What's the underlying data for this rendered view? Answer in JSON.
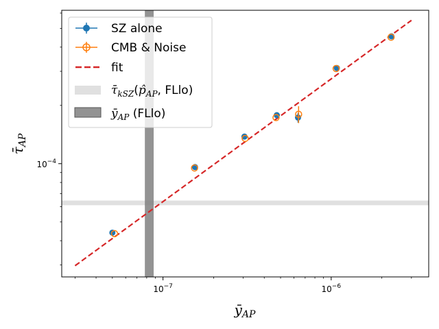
{
  "chart_data": {
    "type": "scatter",
    "title": "",
    "xlabel": "ȳ",
    "xlabel_sub": "AP",
    "ylabel": "τ̄",
    "ylabel_sub": "AP",
    "xscale": "log",
    "yscale": "log",
    "xlim": [
      2.5e-08,
      3.8e-06
    ],
    "ylim": [
      2.6e-05,
      0.00062
    ],
    "x_ticks": [
      {
        "value": 1e-07,
        "base": "10",
        "exp": "−7"
      },
      {
        "value": 1e-06,
        "base": "10",
        "exp": "−6"
      }
    ],
    "y_ticks": [
      {
        "value": 0.0001,
        "base": "10",
        "exp": "−4"
      }
    ],
    "grid": false,
    "legend_position": "top-left",
    "series": [
      {
        "name": "SZ alone",
        "color": "#1f77b4",
        "marker": "filled-circle",
        "x": [
          5e-08,
          1.55e-07,
          3.05e-07,
          4.75e-07,
          6.35e-07,
          1.08e-06,
          2.28e-06
        ],
        "y": [
          4.4e-05,
          9.6e-05,
          0.000138,
          0.000178,
          0.000173,
          0.000312,
          0.000455
        ],
        "yerr": [
          0,
          0,
          0,
          0,
          1e-05,
          0,
          0
        ]
      },
      {
        "name": "CMB & Noise",
        "color": "#ff7f0e",
        "marker": "open-circle",
        "x": [
          5.15e-08,
          1.54e-07,
          3.08e-07,
          4.7e-07,
          6.4e-07,
          1.07e-06,
          2.27e-06
        ],
        "y": [
          4.35e-05,
          9.5e-05,
          0.000135,
          0.000173,
          0.00018,
          0.00031,
          0.00045
        ],
        "yerr": [
          0,
          0,
          0,
          0,
          1.8e-05,
          0,
          0
        ]
      },
      {
        "name": "fit",
        "color": "#d62728",
        "style": "dashed-line",
        "x": [
          3e-08,
          3e-06
        ],
        "y": [
          2.97e-05,
          0.00055
        ]
      }
    ],
    "bands": [
      {
        "name": "τ̄kSZ(p̂AP, FLlo)",
        "legend_main": "τ̄",
        "legend_sub": "kSZ",
        "legend_paren": "p̂",
        "legend_paren_sub": "AP",
        "legend_rest": ", FLlo)",
        "orientation": "horizontal",
        "range": [
          6.1e-05,
          6.45e-05
        ],
        "color": "#d3d3d3",
        "opacity": 0.7
      },
      {
        "name": "ȳAP (FLlo)",
        "legend_main": "ȳ",
        "legend_sub": "AP",
        "legend_rest": " (FLlo)",
        "orientation": "vertical",
        "range": [
          7.8e-08,
          8.8e-08
        ],
        "color": "#808080",
        "opacity": 0.85
      }
    ]
  }
}
